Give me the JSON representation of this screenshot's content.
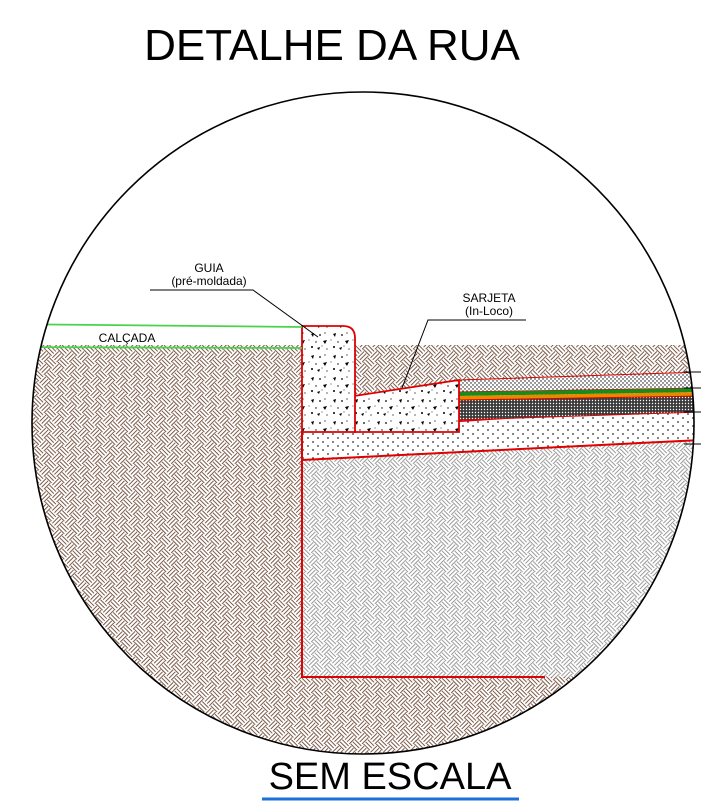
{
  "title": "DETALHE DA RUA",
  "footer": {
    "scale_note": "SEM ESCALA"
  },
  "labels": {
    "curb_line1": "GUIA",
    "curb_line2": "(pré-moldada)",
    "gutter_line1": "SARJETA",
    "gutter_line2": "(In-Loco)",
    "sidewalk": "CALÇADA"
  },
  "colors": {
    "outline": "#000000",
    "section_edge": "#e00000",
    "sidewalk_line": "#4ad34a",
    "soil_hatch": "#7a5a48",
    "base_hatch": "#9a9a9a",
    "asphalt_green": "#1a8a1a",
    "asphalt_orange": "#e88a00",
    "underline": "#1f6fd8"
  }
}
